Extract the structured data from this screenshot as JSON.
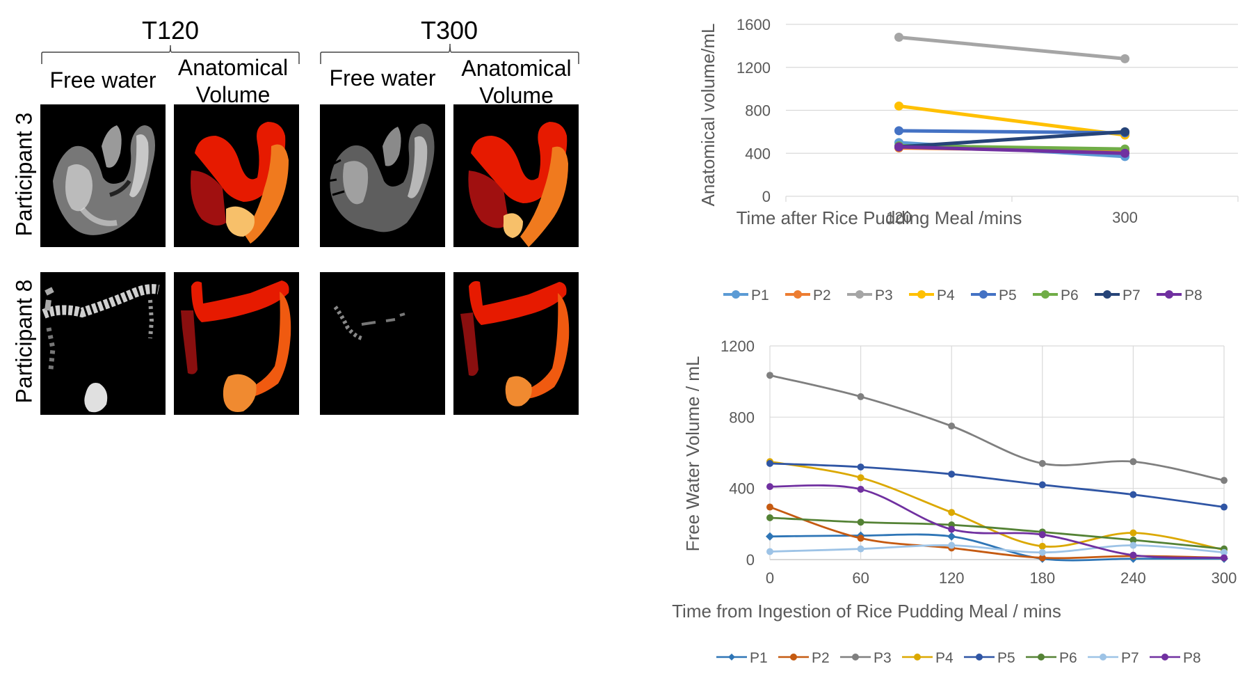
{
  "figure": {
    "columns": [
      {
        "title": "T120",
        "sub": [
          "Free water",
          "Anatomical Volume"
        ]
      },
      {
        "title": "T300",
        "sub": [
          "Free water",
          "Anatomical Volume"
        ]
      }
    ],
    "rows": [
      "Participant 3",
      "Participant 8"
    ],
    "panel_types": [
      "mri-free-water-greyscale",
      "anatomical-volume-red-orange"
    ],
    "colors": {
      "dark_red": "#a01010",
      "red": "#e61a00",
      "orange": "#f07a1e",
      "light_orange": "#f7b55a",
      "background": "#000000"
    }
  },
  "chart_data": [
    {
      "type": "line",
      "title": "",
      "xlabel": "Time after Rice Pudding Meal /mins",
      "ylabel": "Anatomical volume/mL",
      "categories": [
        "120",
        "300"
      ],
      "ylim": [
        0,
        1600
      ],
      "yticks": [
        "0",
        "400",
        "800",
        "1200",
        "1600"
      ],
      "grid": true,
      "legend": "bottom",
      "series": [
        {
          "name": "P1",
          "color": "#5b9bd5",
          "values": [
            500,
            370
          ]
        },
        {
          "name": "P2",
          "color": "#ed7d31",
          "values": [
            450,
            420
          ]
        },
        {
          "name": "P3",
          "color": "#a5a5a5",
          "values": [
            1480,
            1280
          ]
        },
        {
          "name": "P4",
          "color": "#ffc000",
          "values": [
            840,
            570
          ]
        },
        {
          "name": "P5",
          "color": "#4472c4",
          "values": [
            610,
            590
          ]
        },
        {
          "name": "P6",
          "color": "#70ad47",
          "values": [
            470,
            440
          ]
        },
        {
          "name": "P7",
          "color": "#264478",
          "values": [
            460,
            600
          ]
        },
        {
          "name": "P8",
          "color": "#7030a0",
          "values": [
            460,
            400
          ]
        }
      ]
    },
    {
      "type": "line",
      "title": "",
      "xlabel": "Time from Ingestion of Rice Pudding Meal  / mins",
      "ylabel": "Free Water Volume / mL",
      "x": [
        0,
        60,
        120,
        180,
        240,
        300
      ],
      "xticks": [
        "0",
        "60",
        "120",
        "180",
        "240",
        "300"
      ],
      "ylim": [
        0,
        1200
      ],
      "yticks": [
        "0",
        "400",
        "800",
        "1200"
      ],
      "grid": true,
      "legend": "bottom",
      "series": [
        {
          "name": "P1",
          "color": "#2e75b6",
          "marker": "diamond",
          "values": [
            130,
            135,
            130,
            5,
            5,
            5
          ]
        },
        {
          "name": "P2",
          "color": "#c55a11",
          "marker": "circle",
          "values": [
            295,
            120,
            65,
            10,
            20,
            10
          ]
        },
        {
          "name": "P3",
          "color": "#7f7f7f",
          "marker": "circle",
          "values": [
            1035,
            915,
            750,
            540,
            550,
            445
          ]
        },
        {
          "name": "P4",
          "color": "#dba800",
          "marker": "circle",
          "values": [
            550,
            460,
            265,
            75,
            150,
            55
          ]
        },
        {
          "name": "P5",
          "color": "#2f55a4",
          "marker": "circle",
          "values": [
            540,
            520,
            480,
            420,
            365,
            295
          ]
        },
        {
          "name": "P6",
          "color": "#548235",
          "marker": "circle",
          "values": [
            235,
            210,
            195,
            155,
            110,
            60
          ]
        },
        {
          "name": "P7",
          "color": "#9dc3e6",
          "marker": "circle",
          "values": [
            45,
            60,
            80,
            40,
            80,
            40
          ]
        },
        {
          "name": "P8",
          "color": "#7030a0",
          "marker": "circle",
          "values": [
            410,
            395,
            170,
            140,
            25,
            10
          ]
        }
      ]
    }
  ]
}
